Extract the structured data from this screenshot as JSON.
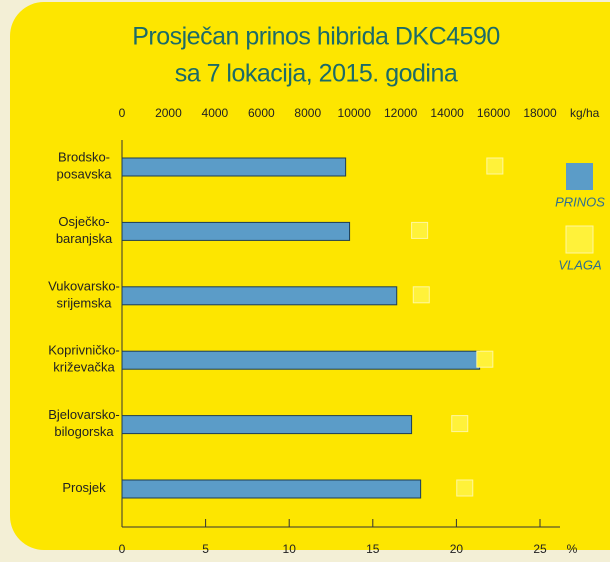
{
  "chart_data": {
    "type": "bar",
    "orientation": "horizontal",
    "title": [
      "Prosječan prinos hibrida DKC4590",
      "sa 7 lokacija, 2015. godina"
    ],
    "categories": [
      [
        "Brodsko-",
        "posavska"
      ],
      [
        "Osječko-",
        "baranjska"
      ],
      [
        "Vukovarsko-",
        "srijemska"
      ],
      [
        "Koprivničko-",
        "križevačka"
      ],
      [
        "Bjelovarsko-",
        "bilogorska"
      ],
      [
        "Prosjek"
      ]
    ],
    "series": [
      {
        "name": "PRINOS",
        "color": "#5b9cc8",
        "axis": "x",
        "values": [
          9630,
          9800,
          11830,
          15400,
          12470,
          12860
        ]
      },
      {
        "name": "VLAGA",
        "color": "#fff23a",
        "axis": "x2",
        "values": [
          22.3,
          17.8,
          17.9,
          21.7,
          20.2,
          20.5
        ]
      }
    ],
    "xlim": [
      0,
      18000
    ],
    "xticks": [
      0,
      2000,
      4000,
      6000,
      8000,
      10000,
      12000,
      14000,
      16000,
      18000
    ],
    "x_unit": "kg/ha",
    "x2lim": [
      0,
      25
    ],
    "x2ticks": [
      0,
      5,
      10,
      15,
      20,
      25
    ],
    "x2_unit": "%"
  }
}
